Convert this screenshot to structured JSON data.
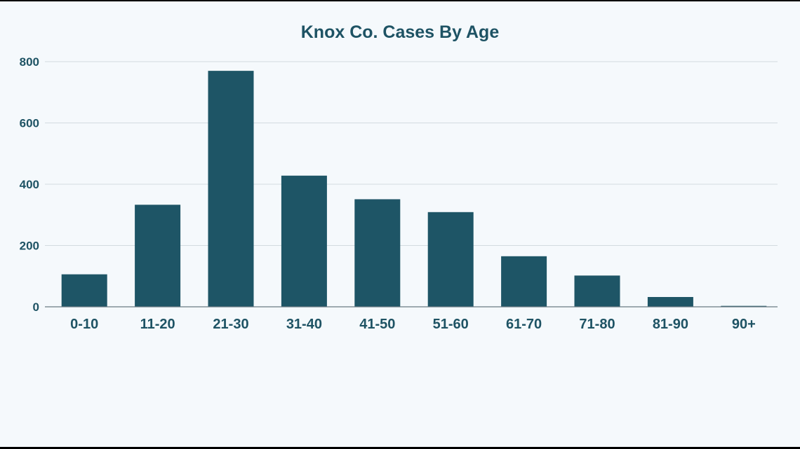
{
  "chart_data": {
    "type": "bar",
    "title": "Knox Co. Cases By Age",
    "xlabel": "",
    "ylabel": "",
    "categories": [
      "0-10",
      "11-20",
      "21-30",
      "31-40",
      "41-50",
      "51-60",
      "61-70",
      "71-80",
      "81-90",
      "90+"
    ],
    "values": [
      106,
      333,
      770,
      428,
      351,
      309,
      165,
      102,
      32,
      3
    ],
    "ylim": [
      0,
      800
    ],
    "yticks": [
      "0",
      "200",
      "400",
      "600",
      "800"
    ],
    "grid": true,
    "legend": "none",
    "bar_color": "#1e5566",
    "grid_color": "#d3dbe0",
    "axis_color": "#6b7b83",
    "text_color": "#1e5364",
    "background": "#f5f9fc"
  }
}
